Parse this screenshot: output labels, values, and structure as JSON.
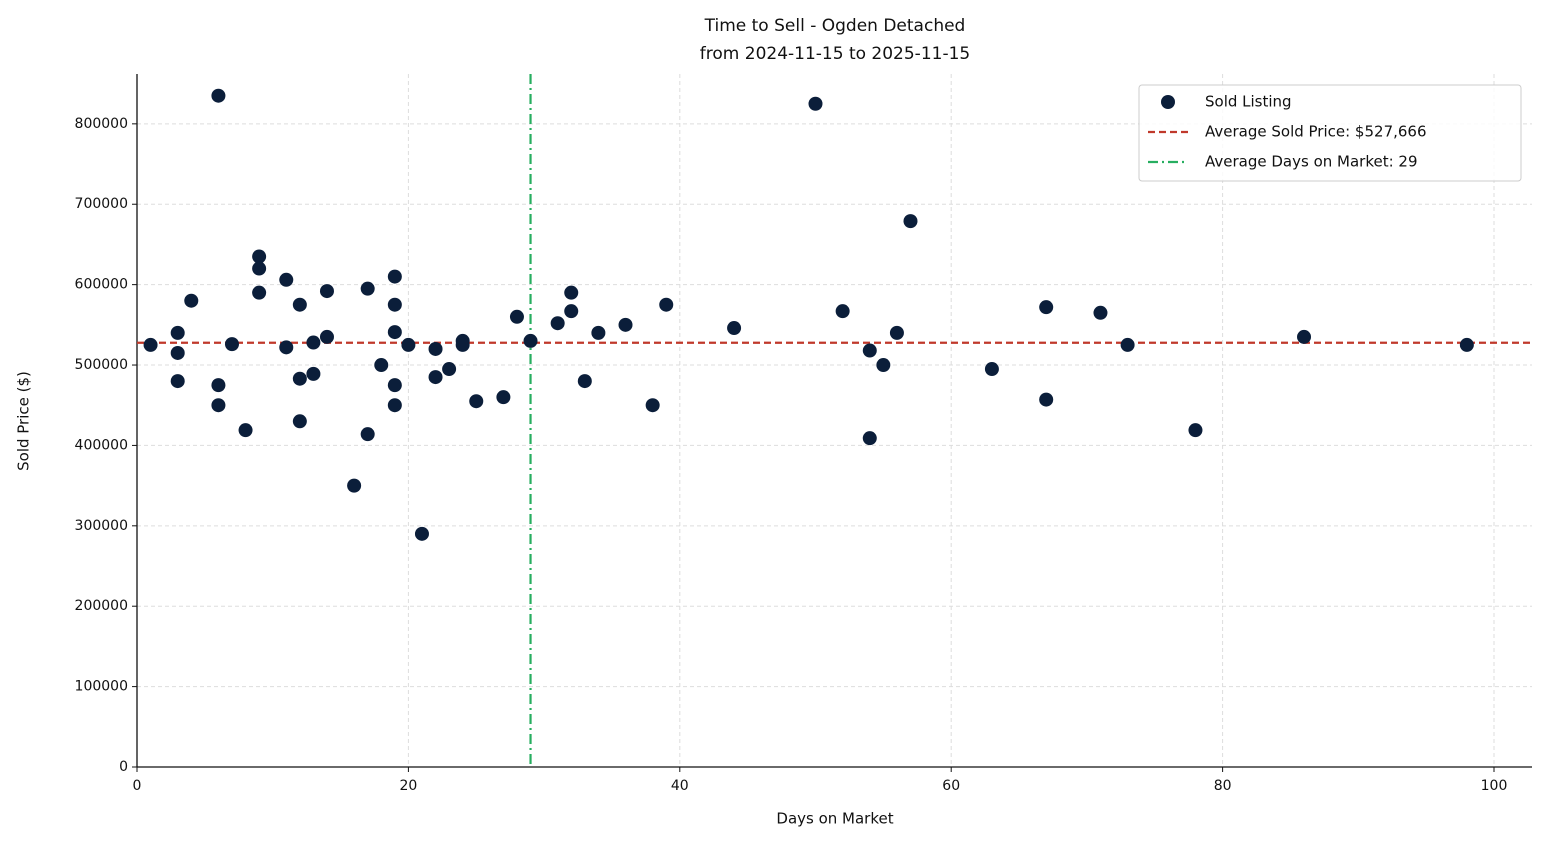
{
  "chart_data": {
    "type": "scatter",
    "title": "Time to Sell - Ogden Detached",
    "subtitle": "from 2024-11-15 to 2025-11-15",
    "x_label": "Days on Market",
    "y_label": "Sold Price ($)",
    "xlim": [
      0,
      102.8
    ],
    "ylim": [
      0,
      862000
    ],
    "xticks": [
      0,
      20,
      40,
      60,
      80,
      100
    ],
    "yticks": [
      0,
      100000,
      200000,
      300000,
      400000,
      500000,
      600000,
      700000,
      800000
    ],
    "grid": true,
    "legend": "upper right",
    "series": [
      {
        "name": "Sold Listing",
        "color": "#0b1e3a",
        "x": [
          1,
          3,
          3,
          3,
          4,
          6,
          6,
          6,
          7,
          8,
          9,
          9,
          9,
          11,
          11,
          12,
          12,
          12,
          13,
          13,
          14,
          14,
          16,
          17,
          17,
          18,
          19,
          19,
          19,
          19,
          19,
          20,
          21,
          22,
          22,
          23,
          24,
          24,
          25,
          27,
          28,
          29,
          31,
          32,
          32,
          33,
          34,
          36,
          38,
          39,
          44,
          50,
          52,
          54,
          54,
          55,
          56,
          57,
          63,
          67,
          67,
          71,
          73,
          78,
          86,
          98
        ],
        "values": [
          525000,
          540000,
          515000,
          480000,
          580000,
          835000,
          475000,
          450000,
          526000,
          419000,
          635000,
          620000,
          590000,
          606000,
          522000,
          575000,
          483000,
          430000,
          528000,
          489000,
          592000,
          535000,
          350000,
          595000,
          414000,
          500000,
          610000,
          575000,
          541000,
          475000,
          450000,
          525000,
          290000,
          520000,
          485000,
          495000,
          530000,
          525000,
          455000,
          460000,
          560000,
          530000,
          552000,
          590000,
          567000,
          480000,
          540000,
          550000,
          450000,
          575000,
          546000,
          825000,
          567000,
          518000,
          409000,
          500000,
          540000,
          679000,
          495000,
          572000,
          457000,
          565000,
          525000,
          419000,
          535000,
          525000
        ]
      }
    ],
    "reference_lines": [
      {
        "name": "Average Sold Price: $527,666",
        "axis": "y",
        "value": 527666,
        "color": "#c0392b",
        "style": "dashed"
      },
      {
        "name": "Average Days on Market: 29",
        "axis": "x",
        "value": 29,
        "color": "#27ae60",
        "style": "dashdot"
      }
    ]
  }
}
